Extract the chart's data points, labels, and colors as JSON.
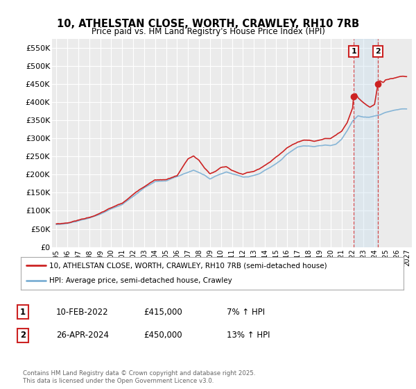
{
  "title": "10, ATHELSTAN CLOSE, WORTH, CRAWLEY, RH10 7RB",
  "subtitle": "Price paid vs. HM Land Registry's House Price Index (HPI)",
  "ylabel_ticks": [
    "£0",
    "£50K",
    "£100K",
    "£150K",
    "£200K",
    "£250K",
    "£300K",
    "£350K",
    "£400K",
    "£450K",
    "£500K",
    "£550K"
  ],
  "ytick_vals": [
    0,
    50000,
    100000,
    150000,
    200000,
    250000,
    300000,
    350000,
    400000,
    450000,
    500000,
    550000
  ],
  "ylim": [
    0,
    575000
  ],
  "xlim_start": 1994.6,
  "xlim_end": 2027.4,
  "hpi_color": "#7bafd4",
  "price_color": "#cc2222",
  "marker1_x": 2022.1,
  "marker2_x": 2024.32,
  "marker1_price": 415000,
  "marker2_price": 450000,
  "annotation1": "1",
  "annotation2": "2",
  "legend_label1": "10, ATHELSTAN CLOSE, WORTH, CRAWLEY, RH10 7RB (semi-detached house)",
  "legend_label2": "HPI: Average price, semi-detached house, Crawley",
  "table_row1": [
    "1",
    "10-FEB-2022",
    "£415,000",
    "7% ↑ HPI"
  ],
  "table_row2": [
    "2",
    "26-APR-2024",
    "£450,000",
    "13% ↑ HPI"
  ],
  "footer": "Contains HM Land Registry data © Crown copyright and database right 2025.\nThis data is licensed under the Open Government Licence v3.0.",
  "plot_bg": "#ebebeb",
  "grid_color": "#ffffff"
}
